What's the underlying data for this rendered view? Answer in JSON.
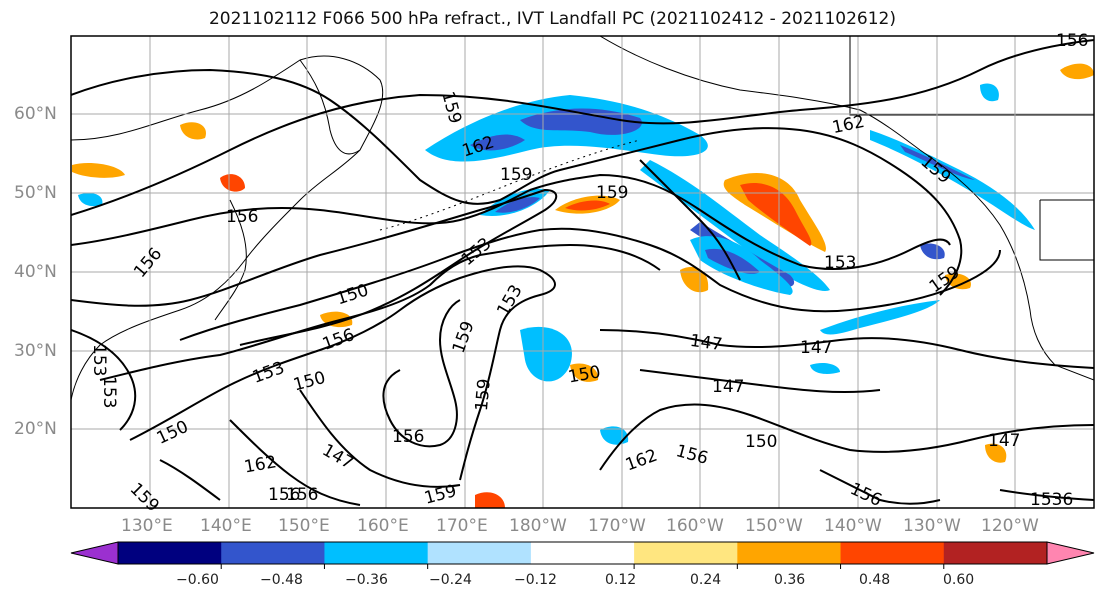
{
  "title": "2021102112 F066 500 hPa refract., IVT Landfall PC (2021102412 - 2021102612)",
  "lat_labels": [
    "60°N",
    "50°N",
    "40°N",
    "30°N",
    "20°N"
  ],
  "lon_labels": [
    "130°E",
    "140°E",
    "150°E",
    "160°E",
    "170°E",
    "180°W",
    "170°W",
    "160°W",
    "150°W",
    "140°W",
    "130°W",
    "120°W"
  ],
  "colorbar": {
    "ticks": [
      "−0.60",
      "−0.48",
      "−0.36",
      "−0.24",
      "−0.12",
      "0.12",
      "0.24",
      "0.36",
      "0.48",
      "0.60"
    ],
    "colors": [
      "#9b30d0",
      "#00007f",
      "#3355cc",
      "#00bfff",
      "#b0e2ff",
      "#ffffff",
      "#ffe680",
      "#ffa500",
      "#ff4500",
      "#b22222",
      "#ff85b0"
    ]
  },
  "contours": {
    "color": "#000000",
    "labels": [
      {
        "text": "159"
      },
      {
        "text": "162"
      },
      {
        "text": "159"
      },
      {
        "text": "159"
      },
      {
        "text": "162"
      },
      {
        "text": "156"
      },
      {
        "text": "156"
      },
      {
        "text": "153"
      },
      {
        "text": "150"
      },
      {
        "text": "153"
      },
      {
        "text": "156"
      },
      {
        "text": "159"
      },
      {
        "text": "153"
      },
      {
        "text": "159"
      },
      {
        "text": "153"
      },
      {
        "text": "150"
      },
      {
        "text": "147"
      },
      {
        "text": "147"
      },
      {
        "text": "147"
      },
      {
        "text": "150"
      },
      {
        "text": "150"
      },
      {
        "text": "156"
      },
      {
        "text": "147"
      },
      {
        "text": "150"
      },
      {
        "text": "156"
      },
      {
        "text": "162"
      },
      {
        "text": "159"
      },
      {
        "text": "162"
      },
      {
        "text": "156"
      },
      {
        "text": "159"
      },
      {
        "text": "147"
      },
      {
        "text": "156"
      },
      {
        "text": "1536"
      },
      {
        "text": "153"
      },
      {
        "text": "153"
      },
      {
        "text": "156"
      },
      {
        "text": "159"
      },
      {
        "text": "156"
      },
      {
        "text": "159"
      }
    ]
  }
}
